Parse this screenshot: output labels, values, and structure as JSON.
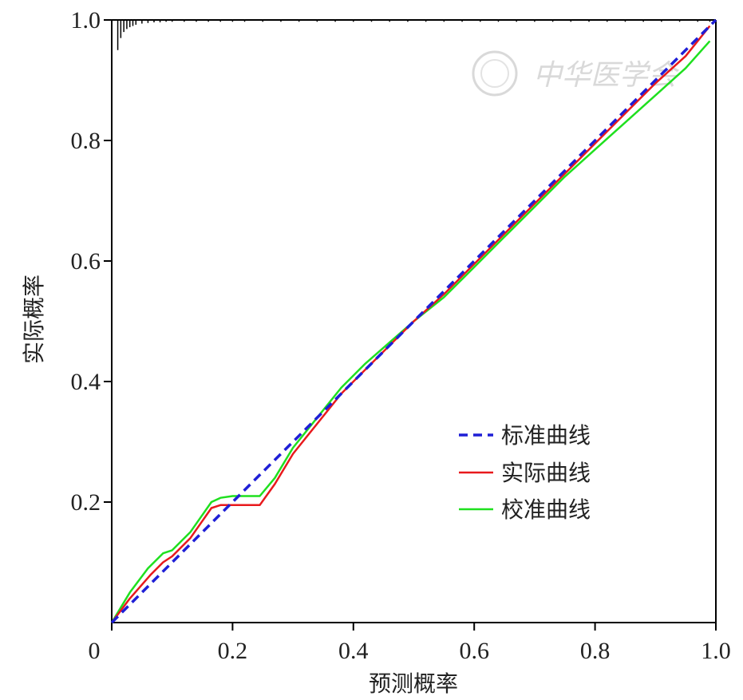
{
  "chart_data": {
    "type": "line",
    "title": "",
    "xlabel": "预测概率",
    "ylabel": "实际概率",
    "xlim": [
      0,
      1
    ],
    "ylim": [
      0,
      1
    ],
    "xticks": [
      "0",
      "0.2",
      "0.4",
      "0.6",
      "0.8",
      "1.0"
    ],
    "yticks": [
      "0.2",
      "0.4",
      "0.6",
      "0.8",
      "1.0"
    ],
    "grid": false,
    "legend_position": "lower-right",
    "watermark": "中华医学会",
    "series": [
      {
        "name": "标准曲线",
        "color": "#1f1fd6",
        "style": "dashed",
        "x": [
          0,
          1
        ],
        "y": [
          0,
          1
        ]
      },
      {
        "name": "实际曲线",
        "color": "#e8191c",
        "style": "solid",
        "x": [
          0.0,
          0.03,
          0.065,
          0.085,
          0.1,
          0.13,
          0.165,
          0.18,
          0.2,
          0.245,
          0.27,
          0.3,
          0.34,
          0.38,
          0.42,
          0.46,
          0.5,
          0.55,
          0.6,
          0.65,
          0.7,
          0.75,
          0.8,
          0.85,
          0.9,
          0.95,
          0.99
        ],
        "y": [
          0.0,
          0.04,
          0.08,
          0.1,
          0.11,
          0.14,
          0.19,
          0.195,
          0.195,
          0.195,
          0.23,
          0.28,
          0.33,
          0.38,
          0.42,
          0.46,
          0.5,
          0.545,
          0.595,
          0.645,
          0.695,
          0.745,
          0.795,
          0.845,
          0.895,
          0.94,
          0.99
        ]
      },
      {
        "name": "校准曲线",
        "color": "#1fe01f",
        "style": "solid",
        "x": [
          0.0,
          0.03,
          0.06,
          0.085,
          0.1,
          0.13,
          0.165,
          0.18,
          0.2,
          0.245,
          0.27,
          0.3,
          0.34,
          0.38,
          0.42,
          0.46,
          0.5,
          0.55,
          0.6,
          0.65,
          0.7,
          0.75,
          0.8,
          0.85,
          0.9,
          0.95,
          0.99
        ],
        "y": [
          0.0,
          0.05,
          0.09,
          0.115,
          0.12,
          0.15,
          0.2,
          0.207,
          0.21,
          0.21,
          0.24,
          0.29,
          0.34,
          0.39,
          0.43,
          0.465,
          0.5,
          0.54,
          0.59,
          0.64,
          0.69,
          0.74,
          0.785,
          0.83,
          0.875,
          0.92,
          0.965
        ]
      }
    ],
    "rug_x": [
      0.01,
      0.015,
      0.02,
      0.025,
      0.03,
      0.035,
      0.04,
      0.05,
      0.06,
      0.07,
      0.08,
      0.09,
      0.1,
      0.12,
      0.14,
      0.16,
      0.18,
      0.2,
      0.22,
      0.25,
      0.28,
      0.31,
      0.34,
      0.37,
      0.4,
      0.43,
      0.46,
      0.49,
      0.52,
      0.55,
      0.58,
      0.61,
      0.64,
      0.67,
      0.7,
      0.73,
      0.76,
      0.79,
      0.82,
      0.85,
      0.88,
      0.91,
      0.94,
      0.97,
      0.99
    ],
    "rug_len": [
      0.05,
      0.03,
      0.02,
      0.015,
      0.012,
      0.01,
      0.008,
      0.006,
      0.005,
      0.004,
      0.004,
      0.003,
      0.003,
      0.003,
      0.003,
      0.003,
      0.003,
      0.003,
      0.003,
      0.003,
      0.003,
      0.003,
      0.003,
      0.003,
      0.003,
      0.003,
      0.003,
      0.003,
      0.003,
      0.003,
      0.003,
      0.003,
      0.003,
      0.003,
      0.003,
      0.003,
      0.003,
      0.003,
      0.003,
      0.003,
      0.003,
      0.003,
      0.003,
      0.003,
      0.003
    ]
  }
}
